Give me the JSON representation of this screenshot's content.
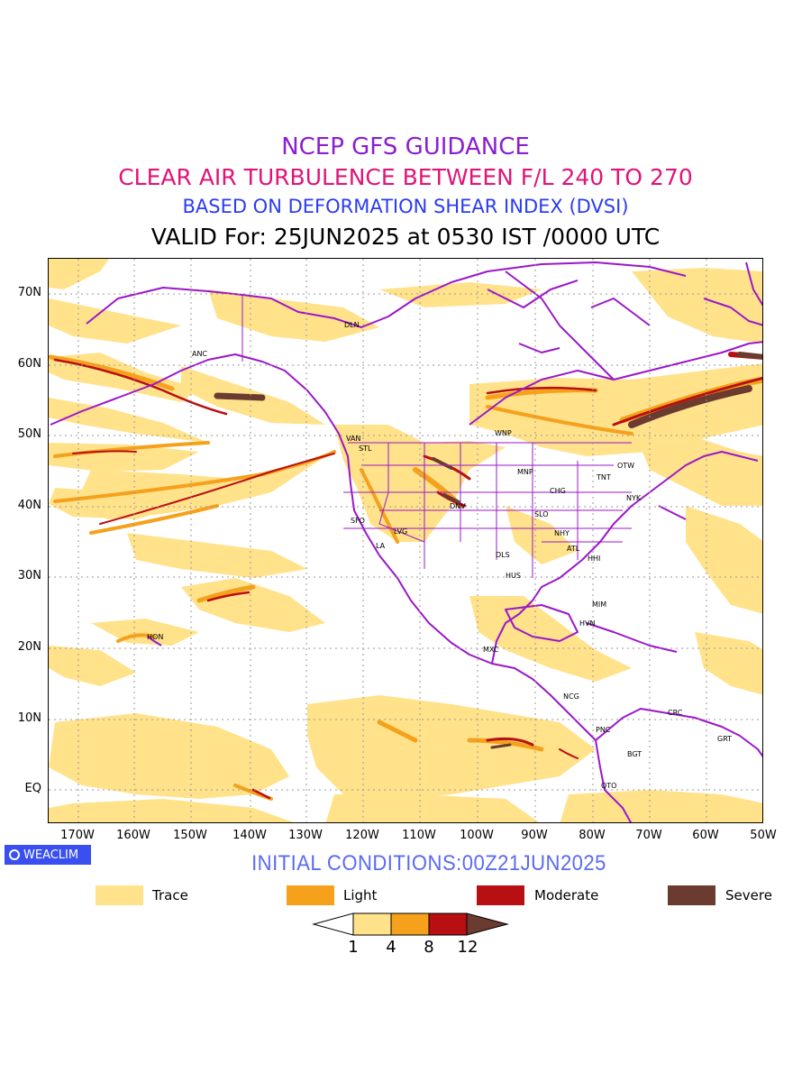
{
  "titles": {
    "line1": "NCEP GFS GUIDANCE",
    "line2": "CLEAR AIR TURBULENCE BETWEEN F/L 240 TO 270",
    "line3": "BASED ON DEFORMATION SHEAR INDEX (DVSI)",
    "line4": "VALID For: 25JUN2025 at 0530 IST /0000 UTC"
  },
  "map": {
    "lat_labels": [
      "70N",
      "60N",
      "50N",
      "40N",
      "30N",
      "20N",
      "10N",
      "EQ"
    ],
    "lon_labels": [
      "170W",
      "160W",
      "150W",
      "140W",
      "130W",
      "120W",
      "110W",
      "100W",
      "90W",
      "80W",
      "70W",
      "60W",
      "50W"
    ],
    "stations": [
      "ANC",
      "DLN",
      "VAN",
      "STL",
      "WNP",
      "MNP",
      "OTW",
      "TNT",
      "CHG",
      "NYK",
      "SLO",
      "DNV",
      "SFO",
      "LVG",
      "LA",
      "NHY",
      "ATL",
      "DLS",
      "HHI",
      "HUS",
      "MIM",
      "HVN",
      "HON",
      "MXC",
      "NCG",
      "CRC",
      "PNC",
      "GRT",
      "BGT",
      "QTO"
    ],
    "colors": {
      "land_outline": "#9b17c9",
      "grid": "#b0b0b0",
      "trace": "#ffe28a",
      "light": "#f5a11c",
      "moderate": "#b80f12",
      "severe": "#6b3b2f"
    }
  },
  "badge": {
    "label": "WEACLIM"
  },
  "initial_conditions": "INITIAL CONDITIONS:00Z21JUN2025",
  "legend": [
    {
      "label": "Trace",
      "color": "#ffe28a"
    },
    {
      "label": "Light",
      "color": "#f5a11c"
    },
    {
      "label": "Moderate",
      "color": "#b80f12"
    },
    {
      "label": "Severe",
      "color": "#6b3b2f"
    }
  ],
  "colorbar": {
    "levels": [
      "1",
      "4",
      "8",
      "12"
    ]
  }
}
